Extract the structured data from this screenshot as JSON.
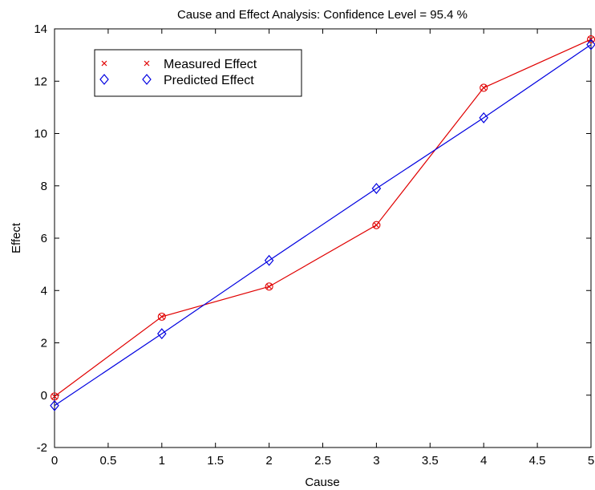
{
  "chart_data": {
    "type": "line",
    "title": "Cause and Effect Analysis: Confidence Level = 95.4 %",
    "xlabel": "Cause",
    "ylabel": "Effect",
    "xlim": [
      0,
      5
    ],
    "ylim": [
      -2,
      14
    ],
    "xticks": [
      "0",
      "0.5",
      "1",
      "1.5",
      "2",
      "2.5",
      "3",
      "3.5",
      "4",
      "4.5",
      "5"
    ],
    "yticks": [
      "-2",
      "0",
      "2",
      "4",
      "6",
      "8",
      "10",
      "12",
      "14"
    ],
    "grid": false,
    "legend_position": "top-left",
    "series": [
      {
        "name": "Measured Effect",
        "color": "#e00000",
        "marker": "x",
        "x": [
          0,
          1,
          2,
          3,
          4,
          5
        ],
        "y": [
          -0.05,
          3.0,
          4.15,
          6.5,
          11.75,
          13.6
        ]
      },
      {
        "name": "Predicted Effect",
        "color": "#0000e0",
        "marker": "diamond",
        "x": [
          0,
          1,
          2,
          3,
          4,
          5
        ],
        "y": [
          -0.4,
          2.35,
          5.15,
          7.9,
          10.6,
          13.4
        ]
      }
    ]
  }
}
